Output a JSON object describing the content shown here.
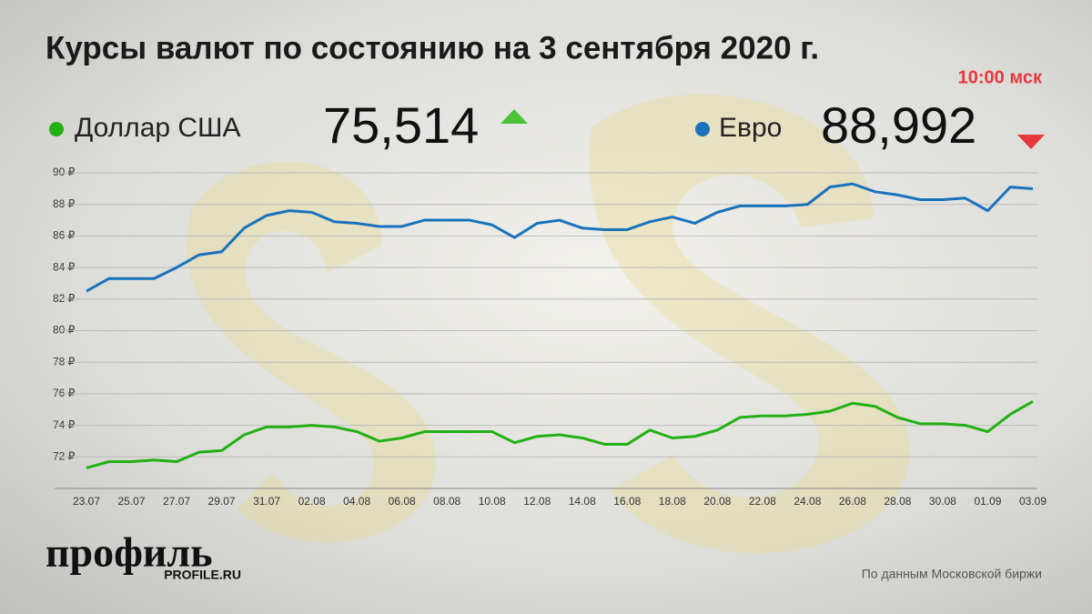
{
  "chart_data": {
    "type": "line",
    "title": "Курсы валют по состоянию на 3 сентября 2020 г.",
    "subtitle": "10:00 мск",
    "categories": [
      "23.07",
      null,
      "25.07",
      null,
      "27.07",
      null,
      "29.07",
      null,
      "31.07",
      null,
      "02.08",
      null,
      "04.08",
      null,
      "06.08",
      null,
      "08.08",
      null,
      "10.08",
      null,
      "12.08",
      null,
      "14.08",
      null,
      "16.08",
      null,
      "18.08",
      null,
      "20.08",
      null,
      "22.08",
      null,
      "24.08",
      null,
      "26.08",
      null,
      "28.08",
      null,
      "30.08",
      null,
      "01.09",
      null,
      "03.09"
    ],
    "series": [
      {
        "name": "Доллар США",
        "color": "#22b014",
        "latest": {
          "value": 75.514,
          "label": "75,514"
        },
        "trend": "up",
        "trend_color": "#4cc13a",
        "values": [
          71.3,
          71.7,
          71.7,
          71.8,
          71.7,
          72.3,
          72.4,
          73.4,
          73.9,
          73.9,
          74.0,
          73.9,
          73.6,
          73.0,
          73.2,
          73.6,
          73.6,
          73.6,
          73.6,
          72.9,
          73.3,
          73.4,
          73.2,
          72.8,
          72.8,
          73.7,
          73.2,
          73.3,
          73.7,
          74.5,
          74.6,
          74.6,
          74.7,
          74.9,
          75.4,
          75.2,
          74.5,
          74.1,
          74.1,
          74.0,
          73.6,
          74.7,
          75.514
        ]
      },
      {
        "name": "Евро",
        "color": "#1a72bb",
        "latest": {
          "value": 88.992,
          "label": "88,992"
        },
        "trend": "down",
        "trend_color": "#e8383d",
        "values": [
          82.5,
          83.3,
          83.3,
          83.3,
          84.0,
          84.8,
          85.0,
          86.5,
          87.3,
          87.6,
          87.5,
          86.9,
          86.8,
          86.6,
          86.6,
          87.0,
          87.0,
          87.0,
          86.7,
          85.9,
          86.8,
          87.0,
          86.5,
          86.4,
          86.4,
          86.9,
          87.2,
          86.8,
          87.5,
          87.9,
          87.9,
          87.9,
          88.0,
          89.1,
          89.3,
          88.8,
          88.6,
          88.3,
          88.3,
          88.4,
          87.6,
          89.1,
          88.992
        ]
      }
    ],
    "ylim": [
      70,
      90
    ],
    "yticks": [
      {
        "value": 72,
        "label": "72 ₽"
      },
      {
        "value": 74,
        "label": "74 ₽"
      },
      {
        "value": 76,
        "label": "76 ₽"
      },
      {
        "value": 78,
        "label": "78 ₽"
      },
      {
        "value": 80,
        "label": "80 ₽"
      },
      {
        "value": 82,
        "label": "82 ₽"
      },
      {
        "value": 84,
        "label": "84 ₽"
      },
      {
        "value": 86,
        "label": "86 ₽"
      },
      {
        "value": 88,
        "label": "88 ₽"
      },
      {
        "value": 90,
        "label": "90 ₽"
      }
    ],
    "grid": true,
    "logo": "профиль",
    "logo_url": "PROFILE.RU",
    "source": "По данным Московской биржи"
  }
}
